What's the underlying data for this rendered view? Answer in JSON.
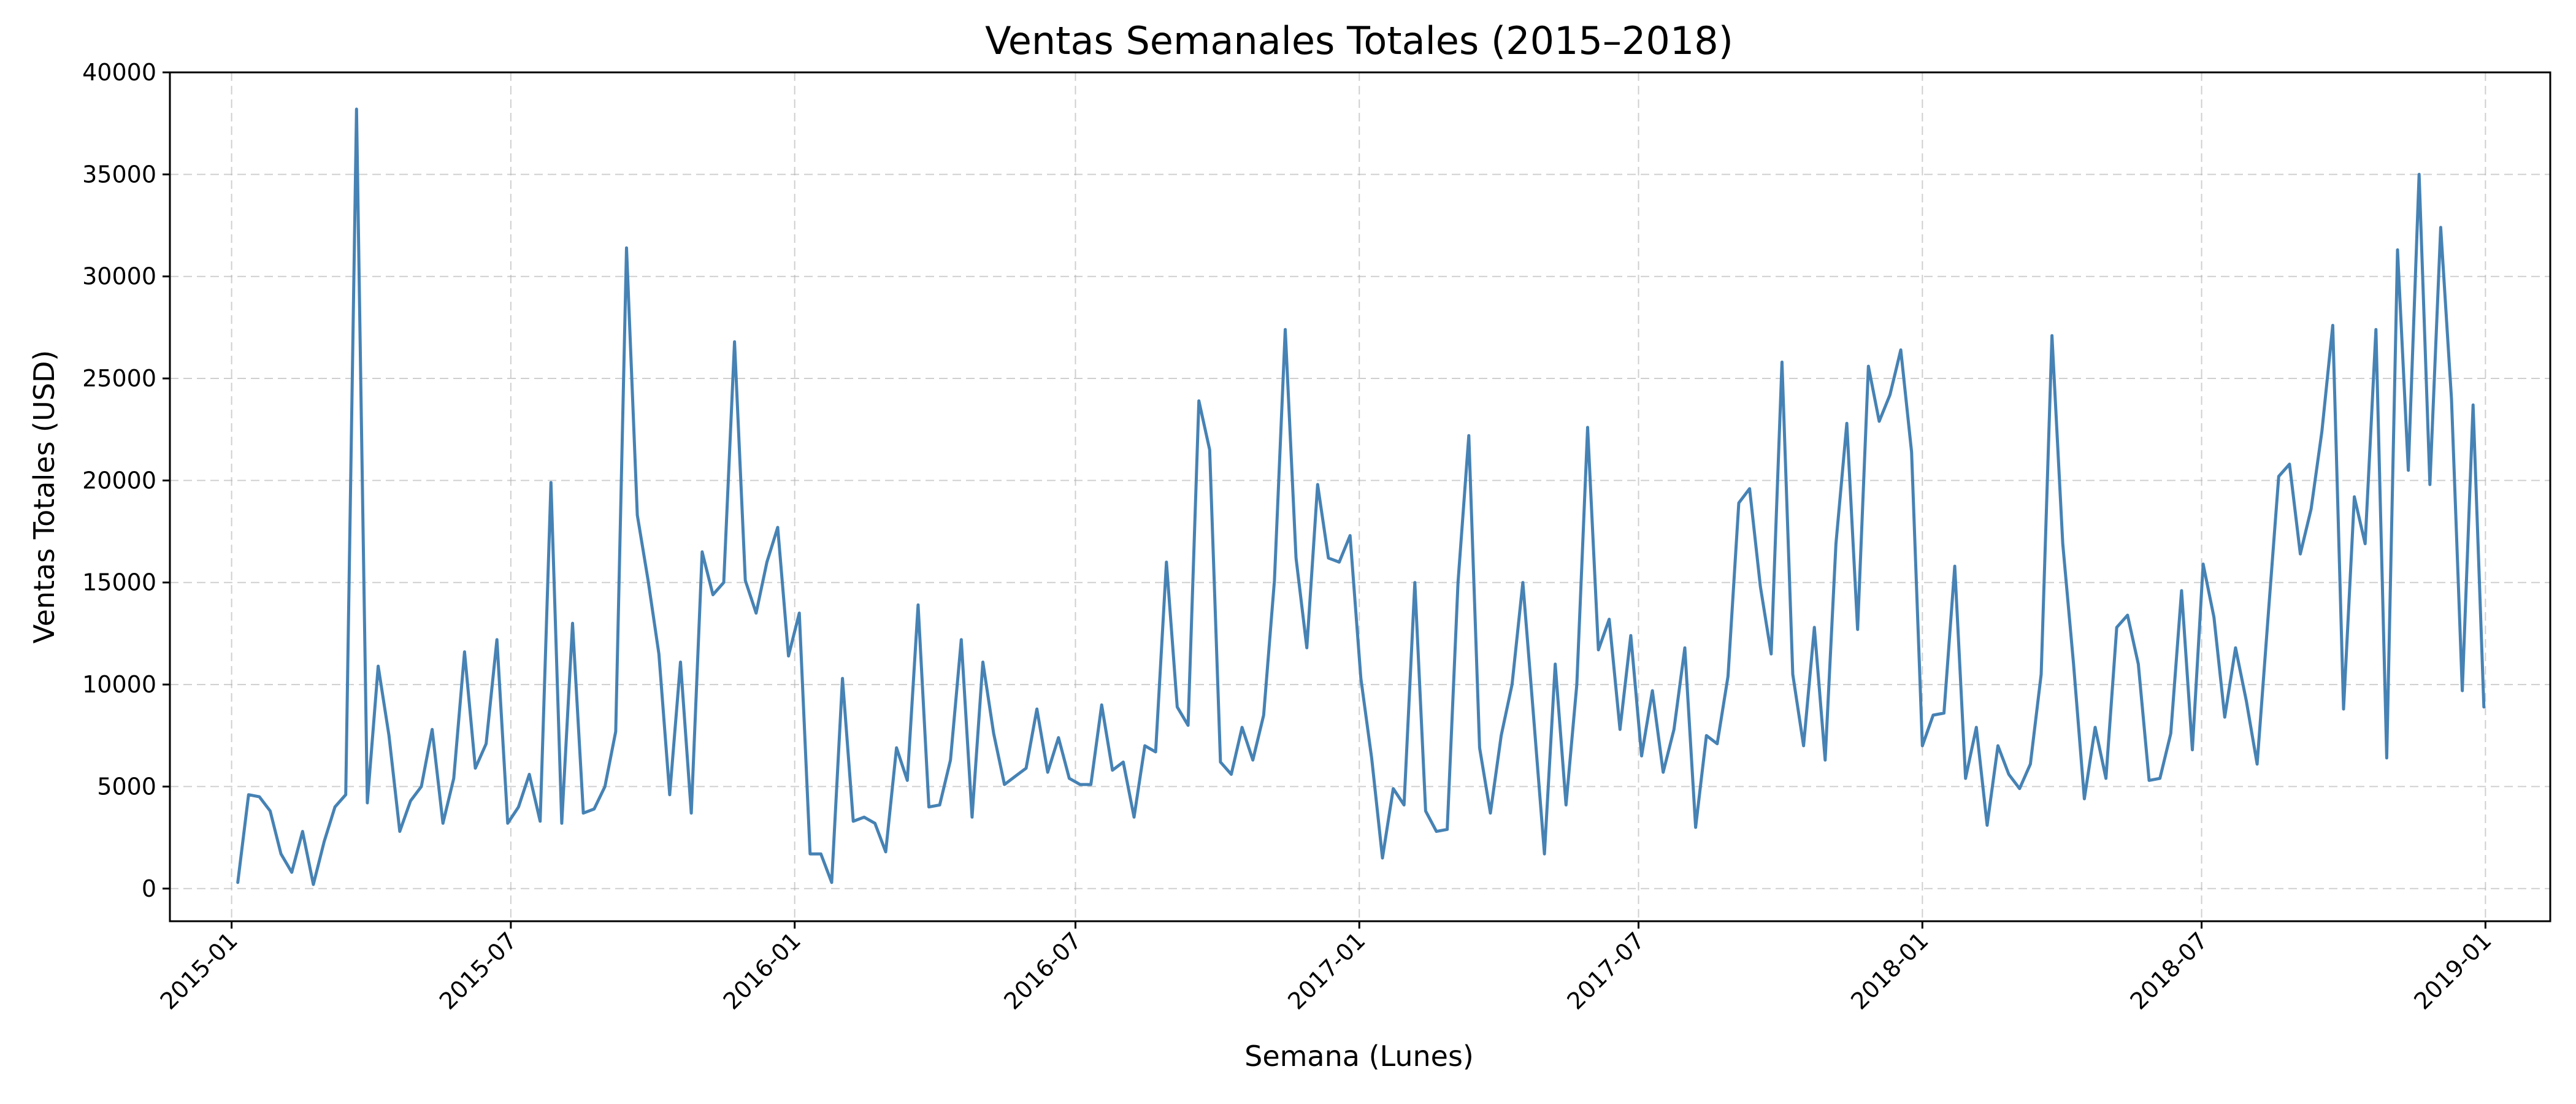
{
  "chart_data": {
    "type": "line",
    "title": "Ventas Semanales Totales (2015–2018)",
    "xlabel": "Semana (Lunes)",
    "ylabel": "Ventas Totales (USD)",
    "x_start": "2015-01-05",
    "x_step_days": 7,
    "xlim": [
      "2014-11-22",
      "2019-02-12"
    ],
    "ylim": [
      -1600,
      40000
    ],
    "x_ticks": [
      "2015-01",
      "2015-07",
      "2016-01",
      "2016-07",
      "2017-01",
      "2017-07",
      "2018-01",
      "2018-07",
      "2019-01"
    ],
    "y_ticks": [
      0,
      5000,
      10000,
      15000,
      20000,
      25000,
      30000,
      35000,
      40000
    ],
    "grid": true,
    "color": "#4682b4",
    "series": [
      {
        "values": [
          300,
          4600,
          4500,
          3800,
          1700,
          800,
          2800,
          200,
          2300,
          4000,
          4600,
          38200,
          4200,
          10900,
          7500,
          2800,
          4300,
          5000,
          7800,
          3200,
          5400,
          11600,
          5900,
          7100,
          12200,
          3200,
          4000,
          5600,
          3300,
          19900,
          3200,
          13000,
          3700,
          3900,
          5000,
          7700,
          31400,
          18300,
          15100,
          11500,
          4600,
          11100,
          3700,
          16500,
          14400,
          15000,
          26800,
          15100,
          13500,
          16000,
          17700,
          11400,
          13500,
          1700,
          1700,
          300,
          10300,
          3300,
          3500,
          3200,
          1800,
          6900,
          5300,
          13900,
          4000,
          4100,
          6300,
          12200,
          3500,
          11100,
          7600,
          5100,
          5500,
          5900,
          8800,
          5700,
          7400,
          5400,
          5100,
          5100,
          9000,
          5800,
          6200,
          3500,
          7000,
          6700,
          16000,
          8900,
          8000,
          23900,
          21500,
          6200,
          5600,
          7900,
          6300,
          8500,
          15100,
          27400,
          16200,
          11800,
          19800,
          16200,
          16000,
          17300,
          10300,
          6400,
          1500,
          4900,
          4100,
          15000,
          3800,
          2800,
          2900,
          15000,
          22200,
          6900,
          3700,
          7500,
          10000,
          15000,
          8400,
          1700,
          11000,
          4100,
          10000,
          22600,
          11700,
          13200,
          7800,
          12400,
          6500,
          9700,
          5700,
          7800,
          11800,
          3000,
          7500,
          7100,
          10400,
          18900,
          19600,
          14800,
          11500,
          25800,
          10500,
          7000,
          12800,
          6300,
          16900,
          22800,
          12700,
          25600,
          22900,
          24200,
          26400,
          21400,
          7000,
          8500,
          8600,
          15800,
          5400,
          7900,
          3100,
          7000,
          5600,
          4900,
          6100,
          10500,
          27100,
          16900,
          11000,
          4400,
          7900,
          5400,
          12800,
          13400,
          11000,
          5300,
          5400,
          7600,
          14600,
          6800,
          15900,
          13300,
          8400,
          11800,
          9200,
          6100,
          13200,
          20200,
          20800,
          16400,
          18600,
          22400,
          27600,
          8800,
          19200,
          16900,
          27400,
          6400,
          31300,
          20500,
          35000,
          19800,
          32400,
          24000,
          9700,
          23700,
          8900
        ]
      }
    ]
  }
}
